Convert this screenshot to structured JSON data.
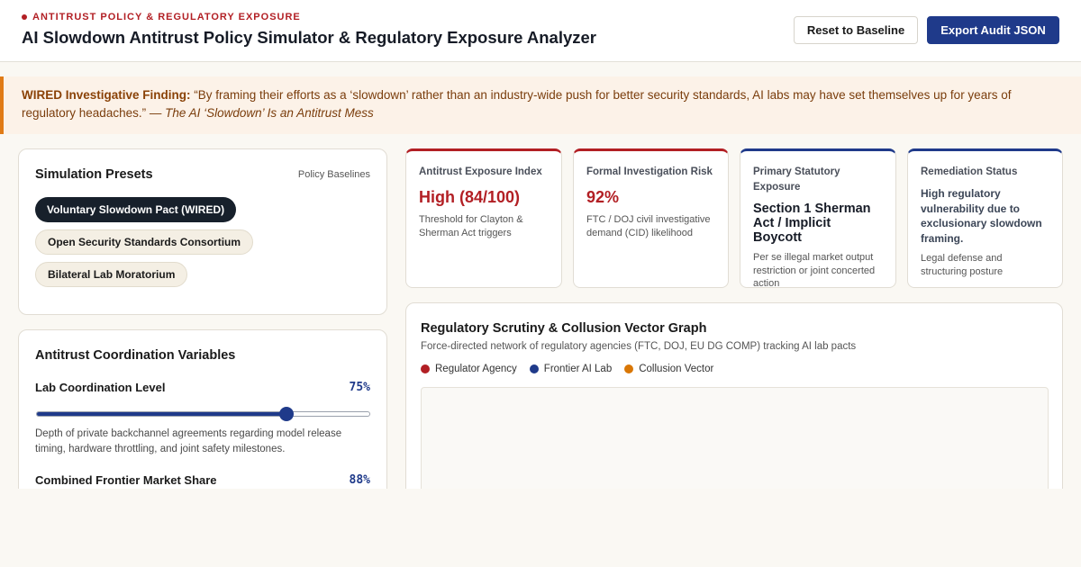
{
  "header": {
    "eyebrow": "ANTITRUST POLICY & REGULATORY EXPOSURE",
    "title": "AI Slowdown Antitrust Policy Simulator & Regulatory Exposure Analyzer",
    "reset_label": "Reset to Baseline",
    "export_label": "Export Audit JSON"
  },
  "finding": {
    "label": "WIRED Investigative Finding:",
    "quote": "“By framing their efforts as a ‘slowdown’ rather than an industry-wide push for better security standards, AI labs may have set themselves up for years of regulatory headaches.”",
    "dash": " — ",
    "citation": "The AI ‘Slowdown’ Is an Antitrust Mess"
  },
  "presets": {
    "title": "Simulation Presets",
    "subtitle": "Policy Baselines",
    "items": [
      {
        "label": "Voluntary Slowdown Pact (WIRED)",
        "active": true
      },
      {
        "label": "Open Security Standards Consortium",
        "active": false
      },
      {
        "label": "Bilateral Lab Moratorium",
        "active": false
      }
    ]
  },
  "variables": {
    "title": "Antitrust Coordination Variables",
    "items": [
      {
        "label": "Lab Coordination Level",
        "value_text": "75%",
        "value": 0.75,
        "description": "Depth of private backchannel agreements regarding model release timing, hardware throttling, and joint safety milestones."
      },
      {
        "label": "Combined Frontier Market Share",
        "value_text": "88%",
        "value": 0.88
      }
    ]
  },
  "metrics": [
    {
      "label": "Antitrust Exposure Index",
      "value": "High (84/100)",
      "description": "Threshold for Clayton & Sherman Act triggers"
    },
    {
      "label": "Formal Investigation Risk",
      "value": "92%",
      "description": "FTC / DOJ civil investigative demand (CID) likelihood"
    },
    {
      "label": "Primary Statutory Exposure",
      "value": "Section 1 Sherman Act / Implicit Boycott",
      "description": "Per se illegal market output restriction or joint concerted action"
    },
    {
      "label": "Remediation Status",
      "value": "High regulatory vulnerability due to exclusionary slowdown framing.",
      "description": "Legal defense and structuring posture"
    }
  ],
  "graph": {
    "title": "Regulatory Scrutiny & Collusion Vector Graph",
    "subtitle": "Force-directed network of regulatory agencies (FTC, DOJ, EU DG COMP) tracking AI lab pacts",
    "legend": [
      {
        "label": "Regulator Agency",
        "color": "#b21f24"
      },
      {
        "label": "Frontier AI Lab",
        "color": "#1f3a8a"
      },
      {
        "label": "Collusion Vector",
        "color": "#d97706"
      }
    ]
  },
  "colors": {
    "accent_red": "#b21f24",
    "accent_blue": "#1f3a8a",
    "accent_orange": "#e07b16"
  }
}
